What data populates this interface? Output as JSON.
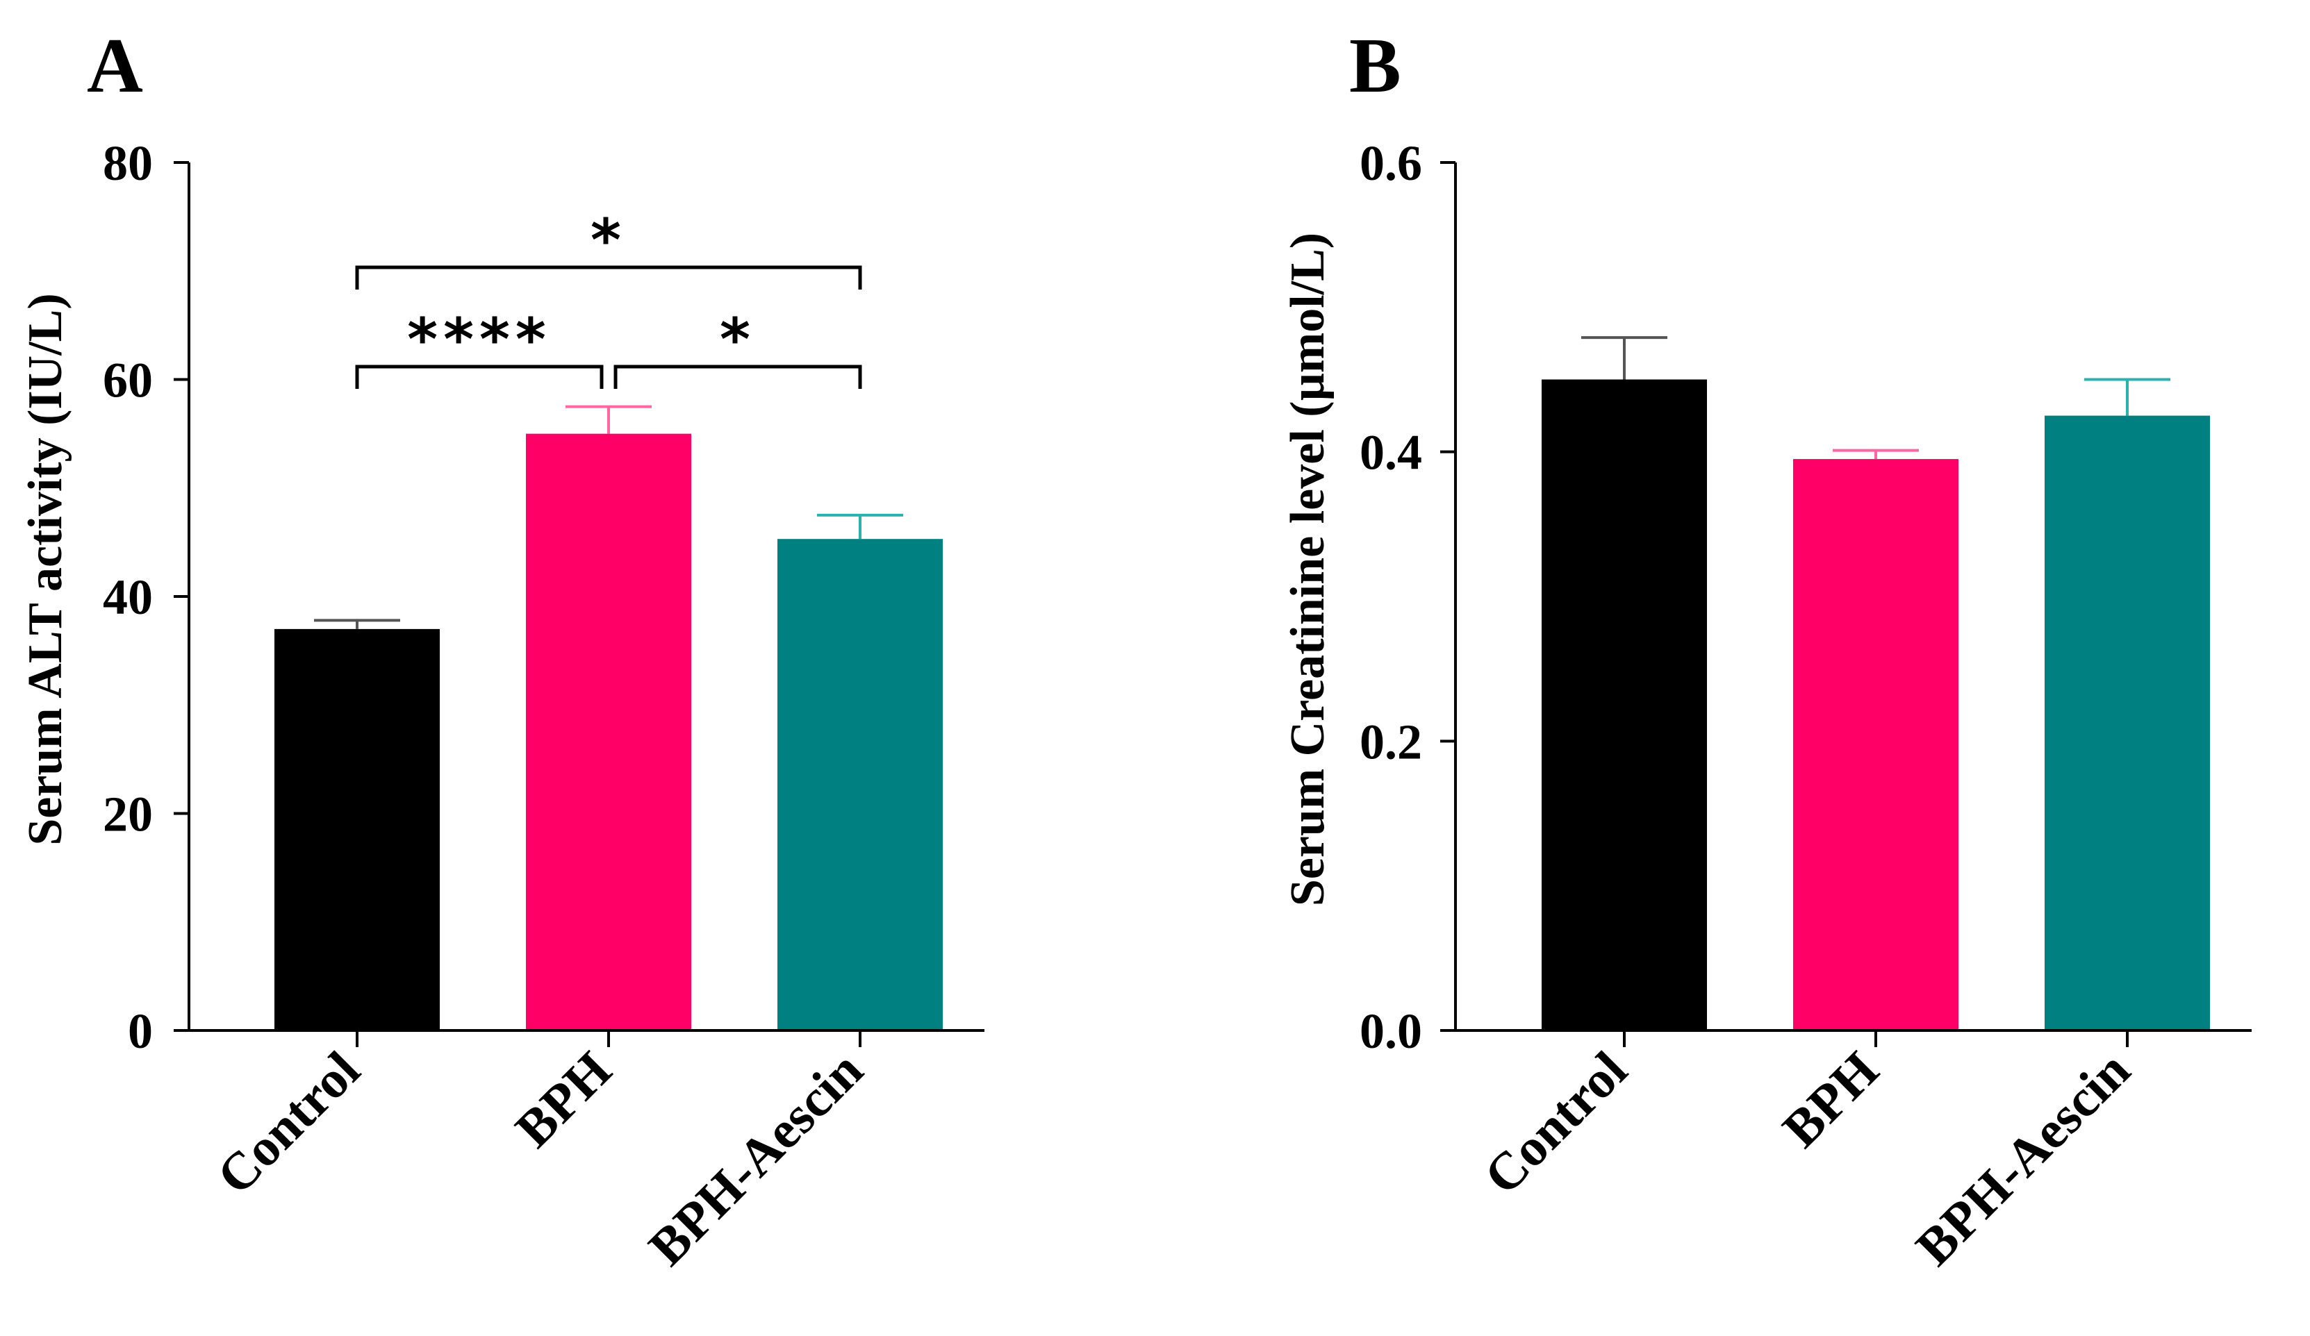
{
  "chart_data": [
    {
      "type": "bar",
      "panel_label": "A",
      "categories": [
        "Control",
        "BPH",
        "BPH-Aescin"
      ],
      "values": [
        37,
        55,
        45.3
      ],
      "errors": [
        0.8,
        2.5,
        2.2
      ],
      "colors": [
        "#000000",
        "#ff0066",
        "#008080"
      ],
      "error_colors": [
        "#555555",
        "#ff66a3",
        "#2ab3aa"
      ],
      "ylabel": "Serum ALT activity (IU/L)",
      "ylim": [
        0,
        80
      ],
      "yticks": [
        0,
        20,
        40,
        60,
        80
      ],
      "tick_labels": [
        "0",
        "20",
        "40",
        "60",
        "80"
      ],
      "significance": [
        {
          "from": 0,
          "to": 1,
          "label": "****",
          "level": 1
        },
        {
          "from": 1,
          "to": 2,
          "label": "*",
          "level": 1
        },
        {
          "from": 0,
          "to": 2,
          "label": "*",
          "level": 2
        }
      ]
    },
    {
      "type": "bar",
      "panel_label": "B",
      "categories": [
        "Control",
        "BPH",
        "BPH-Aescin"
      ],
      "values": [
        0.45,
        0.395,
        0.425
      ],
      "errors": [
        0.029,
        0.006,
        0.025
      ],
      "colors": [
        "#000000",
        "#ff0066",
        "#008080"
      ],
      "error_colors": [
        "#555555",
        "#ff66a3",
        "#2ab3aa"
      ],
      "ylabel": "Serum Creatinine level (µmol/L)",
      "ylim": [
        0,
        0.6
      ],
      "yticks": [
        0,
        0.2,
        0.4,
        0.6
      ],
      "tick_labels": [
        "0.0",
        "0.2",
        "0.4",
        "0.6"
      ],
      "significance": []
    }
  ]
}
